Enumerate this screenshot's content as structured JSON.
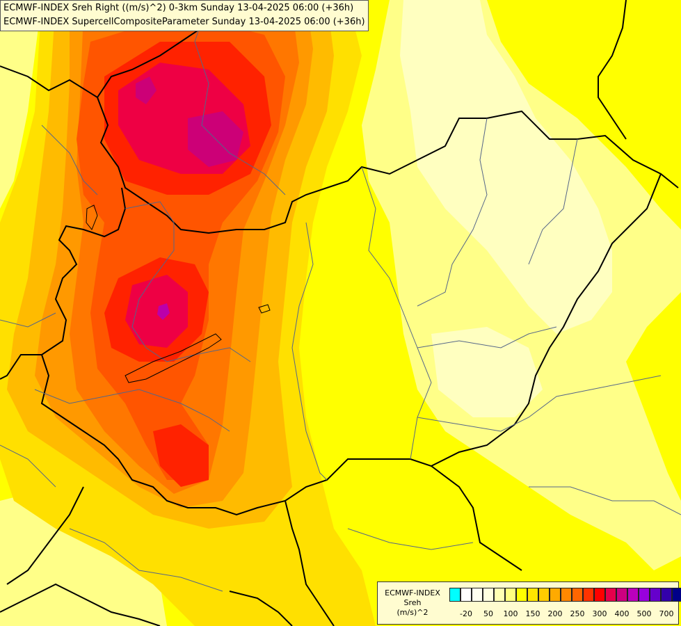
{
  "header": {
    "line1": "ECMWF-INDEX Sreh Right ((m/s)^2) 0-3km Sunday 13-04-2025 06:00 (+36h)",
    "line2": "ECMWF-INDEX SupercellCompositeParameter Sunday 13-04-2025 06:00 (+36h)"
  },
  "legend": {
    "line1": "ECMWF-INDEX",
    "line2": "Sreh",
    "line3": "(m/s)^2",
    "swatch_colors": [
      "#00ffff",
      "#ffffff",
      "#fffff0",
      "#ffffe0",
      "#ffffb4",
      "#ffff80",
      "#ffff00",
      "#ffe600",
      "#ffcc00",
      "#ffaa00",
      "#ff8800",
      "#ff6600",
      "#ff3300",
      "#ff0000",
      "#e6004c",
      "#cc0080",
      "#bb00bb",
      "#9900dd",
      "#6600cc",
      "#3300aa",
      "#000088"
    ],
    "ticks": [
      "-20",
      "50",
      "100",
      "150",
      "200",
      "250",
      "300",
      "400",
      "500",
      "700"
    ]
  },
  "field": {
    "colors": {
      "pale": "#ffffc0",
      "light": "#ffff88",
      "yellow": "#ffff00",
      "gold": "#ffe000",
      "orange_light": "#ffbb00",
      "orange": "#ff9900",
      "orange_dark": "#ff7700",
      "red_orange": "#ff5500",
      "red": "#ff2200",
      "crimson": "#ee0044",
      "magenta": "#cc0077",
      "purple": "#bb00aa"
    }
  }
}
